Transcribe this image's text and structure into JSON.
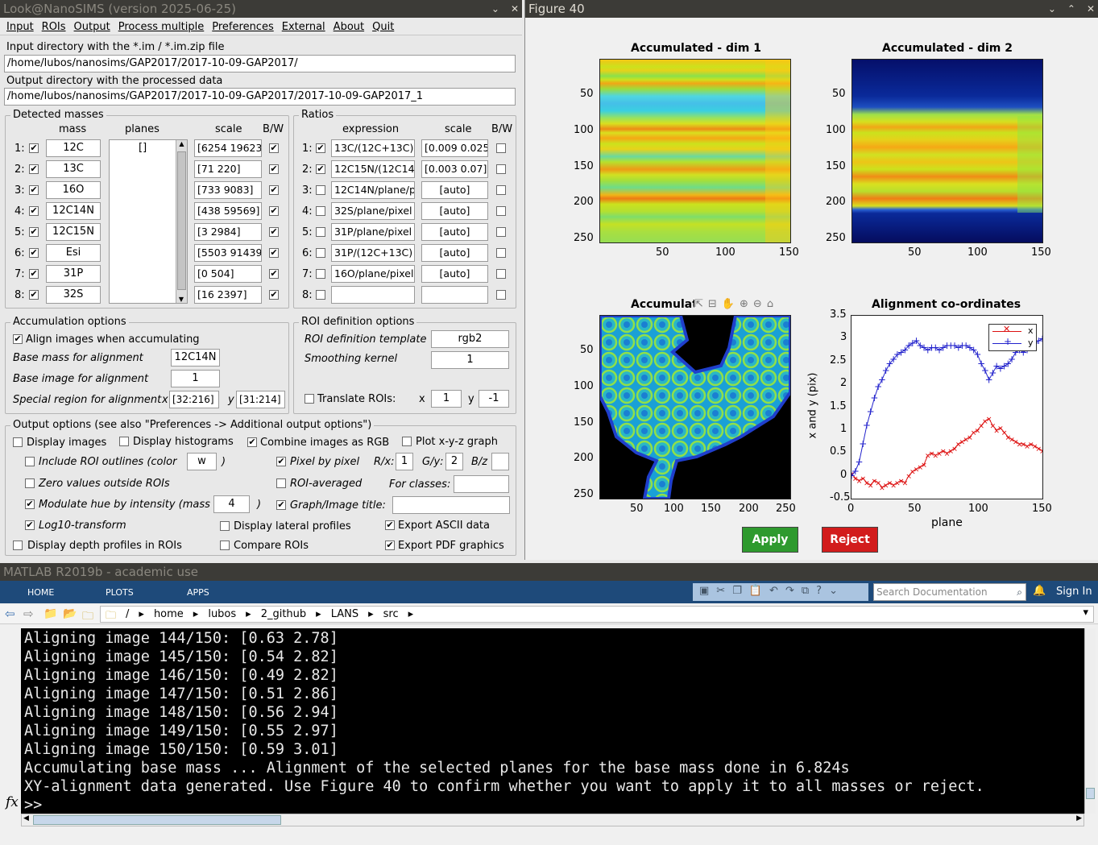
{
  "lans": {
    "title": "Look@NanoSIMS (version 2025-06-25)",
    "menu": [
      "Input",
      "ROIs",
      "Output",
      "Process multiple",
      "Preferences",
      "External",
      "About",
      "Quit"
    ],
    "in_dir_label": "Input directory with the *.im / *.im.zip file",
    "in_dir": "/home/lubos/nanosims/GAP2017/2017-10-09-GAP2017/",
    "out_dir_label": "Output directory with the processed data",
    "out_dir": "/home/lubos/nanosims/GAP2017/2017-10-09-GAP2017/2017-10-09-GAP2017_1",
    "masses_title": "Detected masses",
    "col_mass": "mass",
    "col_planes": "planes",
    "col_scale": "scale",
    "col_bw": "B/W",
    "planes_value": "[]",
    "masses": [
      {
        "n": "1:",
        "mass": "12C",
        "scale": "[6254 19623",
        "on": true,
        "bw": true
      },
      {
        "n": "2:",
        "mass": "13C",
        "scale": "[71 220]",
        "on": true,
        "bw": true
      },
      {
        "n": "3:",
        "mass": "16O",
        "scale": "[733 9083]",
        "on": true,
        "bw": true
      },
      {
        "n": "4:",
        "mass": "12C14N",
        "scale": "[438 59569]",
        "on": true,
        "bw": true
      },
      {
        "n": "5:",
        "mass": "12C15N",
        "scale": "[3 2984]",
        "on": true,
        "bw": true
      },
      {
        "n": "6:",
        "mass": "Esi",
        "scale": "[5503 91439",
        "on": true,
        "bw": true
      },
      {
        "n": "7:",
        "mass": "31P",
        "scale": "[0 504]",
        "on": true,
        "bw": true
      },
      {
        "n": "8:",
        "mass": "32S",
        "scale": "[16 2397]",
        "on": true,
        "bw": true
      }
    ],
    "ratios_title": "Ratios",
    "col_expr": "expression",
    "ratios": [
      {
        "n": "1:",
        "expr": "13C/(12C+13C)",
        "scale": "[0.009 0.025",
        "on": true
      },
      {
        "n": "2:",
        "expr": "12C15N/(12C14",
        "scale": "[0.003 0.07]",
        "on": true
      },
      {
        "n": "3:",
        "expr": "12C14N/plane/p",
        "scale": "[auto]",
        "on": false
      },
      {
        "n": "4:",
        "expr": "32S/plane/pixel",
        "scale": "[auto]",
        "on": false
      },
      {
        "n": "5:",
        "expr": "31P/plane/pixel",
        "scale": "[auto]",
        "on": false
      },
      {
        "n": "6:",
        "expr": "31P/(12C+13C)",
        "scale": "[auto]",
        "on": false
      },
      {
        "n": "7:",
        "expr": "16O/plane/pixel",
        "scale": "[auto]",
        "on": false
      },
      {
        "n": "8:",
        "expr": "",
        "scale": "",
        "on": false
      }
    ],
    "acc": {
      "title": "Accumulation options",
      "align": "Align images when accumulating",
      "base_mass_label": "Base mass for alignment",
      "base_mass": "12C14N",
      "base_img_label": "Base image for alignment",
      "base_img": "1",
      "special_label": "Special region for alignment",
      "x_lbl": "x",
      "x_val": "[32:216]",
      "y_lbl": "y",
      "y_val": "[31:214]"
    },
    "roi": {
      "title": "ROI definition options",
      "tmpl_label": "ROI definition template",
      "tmpl": "rgb2",
      "smooth_label": "Smoothing kernel",
      "smooth": "1",
      "translate_label": "Translate ROIs:",
      "tx_lbl": "x",
      "tx": "1",
      "ty_lbl": "y",
      "ty": "-1"
    },
    "out": {
      "title": "Output options (see also \"Preferences -> Additional output options\")",
      "display_images": "Display images",
      "display_hist": "Display histograms",
      "combine_rgb": "Combine images as RGB",
      "plot_xyz": "Plot x-y-z graph",
      "include_roi": "Include ROI outlines (color",
      "roi_color": "w",
      "paren": ")",
      "pixel_by_pixel": "Pixel by pixel",
      "rx": "R/x:",
      "rx_val": "1",
      "gy": "G/y:",
      "gy_val": "2",
      "bz": "B/z",
      "zero_vals": "Zero values outside ROIs",
      "roi_avg": "ROI-averaged",
      "for_classes": "For classes:",
      "modulate": "Modulate hue by intensity (mass",
      "mod_val": "4",
      "graph_title": "Graph/Image title:",
      "log10": "Log10-transform",
      "lateral": "Display lateral profiles",
      "export_ascii": "Export ASCII data",
      "depth": "Display depth profiles in ROIs",
      "compare": "Compare ROIs",
      "export_pdf": "Export PDF graphics"
    }
  },
  "fig": {
    "title": "Figure 40",
    "t1": "Accumulated - dim 1",
    "t2": "Accumulated - dim 2",
    "t3": "Accumulat",
    "t4": "Alignment co-ordinates",
    "yt_img": [
      "50",
      "100",
      "150",
      "200",
      "250"
    ],
    "xt_150": [
      "50",
      "100",
      "150"
    ],
    "xt_250": [
      "50",
      "100",
      "150",
      "200",
      "250"
    ],
    "ylabel": "x and y (pix)",
    "xlabel": "plane",
    "apply": "Apply",
    "reject": "Reject",
    "legend_x": "x",
    "legend_y": "y",
    "yt_plot": [
      "3.5",
      "3",
      "2.5",
      "2",
      "1.5",
      "1",
      "0.5",
      "0",
      "-0.5"
    ],
    "xt_plot": [
      "0",
      "50",
      "100",
      "150"
    ]
  },
  "chart_data": {
    "type": "line",
    "title": "Alignment co-ordinates",
    "xlabel": "plane",
    "ylabel": "x and y (pix)",
    "xlim": [
      0,
      150
    ],
    "ylim": [
      -0.5,
      3.5
    ],
    "series": [
      {
        "name": "x",
        "color": "#d11",
        "x": [
          0,
          3,
          6,
          9,
          12,
          15,
          18,
          21,
          24,
          27,
          30,
          33,
          36,
          39,
          42,
          45,
          48,
          51,
          54,
          57,
          60,
          63,
          66,
          69,
          72,
          75,
          78,
          81,
          84,
          87,
          90,
          93,
          96,
          99,
          102,
          105,
          108,
          111,
          114,
          117,
          120,
          123,
          126,
          129,
          132,
          135,
          138,
          141,
          144,
          147,
          150
        ],
        "y": [
          0.05,
          -0.05,
          -0.1,
          -0.05,
          -0.15,
          -0.2,
          -0.1,
          -0.15,
          -0.25,
          -0.2,
          -0.15,
          -0.2,
          -0.15,
          -0.1,
          -0.15,
          0.0,
          0.1,
          0.15,
          0.2,
          0.25,
          0.45,
          0.5,
          0.45,
          0.5,
          0.55,
          0.5,
          0.55,
          0.6,
          0.7,
          0.75,
          0.8,
          0.85,
          0.95,
          1.0,
          1.1,
          1.2,
          1.25,
          1.1,
          1.0,
          1.05,
          0.95,
          0.85,
          0.8,
          0.75,
          0.7,
          0.7,
          0.65,
          0.7,
          0.65,
          0.6,
          0.55
        ]
      },
      {
        "name": "y",
        "color": "#22c",
        "x": [
          0,
          3,
          6,
          9,
          12,
          15,
          18,
          21,
          24,
          27,
          30,
          33,
          36,
          39,
          42,
          45,
          48,
          51,
          54,
          57,
          60,
          63,
          66,
          69,
          72,
          75,
          78,
          81,
          84,
          87,
          90,
          93,
          96,
          99,
          102,
          105,
          108,
          111,
          114,
          117,
          120,
          123,
          126,
          129,
          132,
          135,
          138,
          141,
          144,
          147,
          150
        ],
        "y": [
          0.0,
          0.1,
          0.3,
          0.7,
          1.1,
          1.4,
          1.7,
          1.95,
          2.1,
          2.3,
          2.45,
          2.55,
          2.65,
          2.7,
          2.75,
          2.85,
          2.9,
          2.95,
          2.85,
          2.8,
          2.75,
          2.8,
          2.8,
          2.75,
          2.8,
          2.85,
          2.85,
          2.85,
          2.8,
          2.85,
          2.85,
          2.8,
          2.75,
          2.65,
          2.45,
          2.3,
          2.1,
          2.25,
          2.4,
          2.35,
          2.4,
          2.45,
          2.55,
          2.7,
          2.75,
          2.7,
          2.75,
          2.8,
          2.9,
          2.95,
          3.0
        ]
      }
    ]
  },
  "matlab": {
    "title": "MATLAB R2019b - academic use",
    "tabs": [
      "HOME",
      "PLOTS",
      "APPS"
    ],
    "search": "Search Documentation",
    "signin": "Sign In",
    "path": [
      "/",
      "home",
      "lubos",
      "2_github",
      "LANS",
      "src"
    ],
    "prompt": ">>",
    "fx": "fx",
    "lines": [
      "Aligning image 144/150: [0.63 2.78]",
      "Aligning image 145/150: [0.54 2.82]",
      "Aligning image 146/150: [0.49 2.82]",
      "Aligning image 147/150: [0.51 2.86]",
      "Aligning image 148/150: [0.56 2.94]",
      "Aligning image 149/150: [0.55 2.97]",
      "Aligning image 150/150: [0.59 3.01]",
      "Accumulating base mass ... Alignment of the selected planes for the base mass done in 6.824s",
      "XY-alignment data generated. Use Figure 40 to confirm whether you want to apply it to all masses or reject."
    ]
  }
}
